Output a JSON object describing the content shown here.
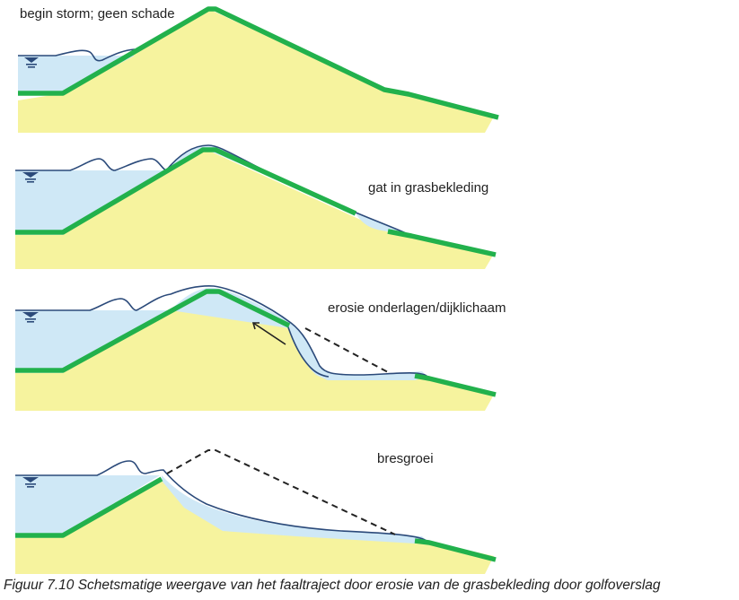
{
  "colors": {
    "sand": "#f6f39e",
    "water": "#cfe8f6",
    "grass": "#22b14c",
    "outline": "#2b4a7a",
    "dashed": "#222222"
  },
  "stages": [
    {
      "label": "begin storm; geen schade"
    },
    {
      "label": "gat in grasbekleding"
    },
    {
      "label": "erosie onderlagen/dijklichaam"
    },
    {
      "label": "bresgroei"
    }
  ],
  "caption": "Figuur 7.10 Schetsmatige weergave van het faaltraject door erosie van de grasbekleding door golfoverslag"
}
